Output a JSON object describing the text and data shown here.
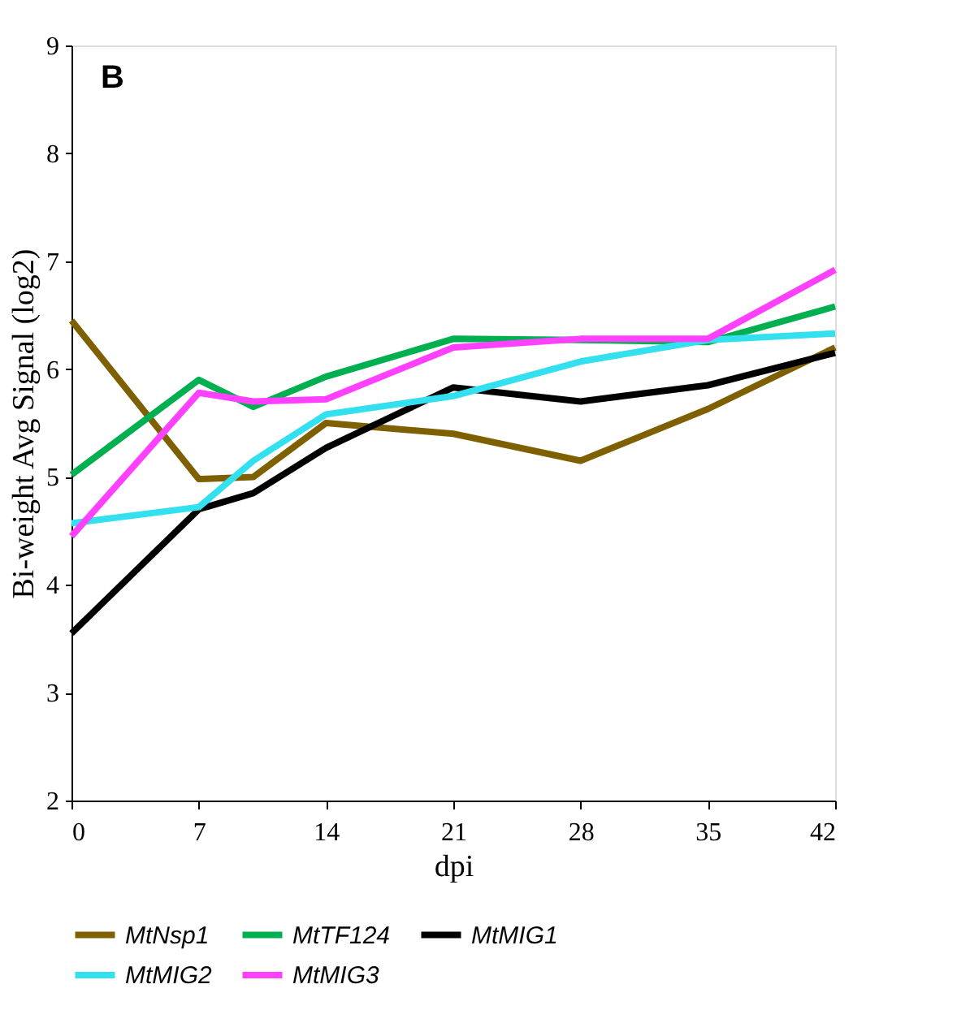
{
  "chart_data": {
    "type": "line",
    "xlabel": "dpi",
    "ylabel": "Bi-weight Avg Signal (log2)",
    "annotations": [
      "B"
    ],
    "x": [
      0,
      7,
      10,
      14,
      21,
      28,
      35,
      42
    ],
    "xlim": [
      0,
      42
    ],
    "xticks": [
      0,
      7,
      14,
      21,
      28,
      35,
      42
    ],
    "ylim": [
      2,
      9
    ],
    "yticks": [
      2,
      3,
      4,
      5,
      6,
      7,
      8,
      9
    ],
    "grid": false,
    "legend": "bottom",
    "marker": "none",
    "line_style": "solid",
    "series": [
      {
        "name": "MtNsp1",
        "color": "#7f6000",
        "values": [
          6.45,
          4.98,
          5.0,
          5.5,
          5.4,
          5.15,
          5.63,
          6.2
        ]
      },
      {
        "name": "MtTF124",
        "color": "#00b050",
        "values": [
          5.02,
          5.9,
          5.65,
          5.93,
          6.28,
          6.27,
          6.25,
          6.58
        ]
      },
      {
        "name": "MtMIG1",
        "color": "#000000",
        "values": [
          3.55,
          4.7,
          4.85,
          5.27,
          5.83,
          5.7,
          5.85,
          6.15
        ]
      },
      {
        "name": "MtMIG2",
        "color": "#33e0f0",
        "values": [
          4.57,
          4.72,
          5.15,
          5.58,
          5.75,
          6.07,
          6.27,
          6.33
        ]
      },
      {
        "name": "MtMIG3",
        "color": "#ff40ff",
        "values": [
          4.45,
          5.78,
          5.7,
          5.72,
          6.2,
          6.28,
          6.28,
          6.92
        ]
      }
    ]
  }
}
